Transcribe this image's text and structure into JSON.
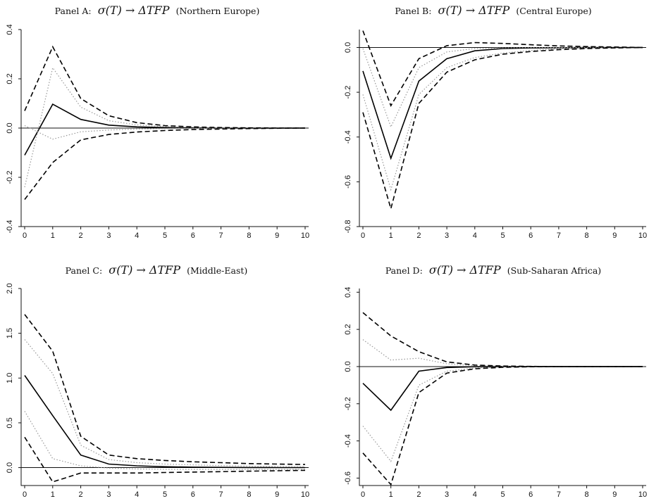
{
  "chart_data": [
    {
      "type": "line",
      "title": {
        "label": "Panel A:",
        "sym": "σ(T) → ΔTFP",
        "region": "(Northern Europe)"
      },
      "x": [
        0,
        1,
        2,
        3,
        4,
        5,
        6,
        7,
        8,
        9,
        10
      ],
      "xticks": [
        "0",
        "1",
        "2",
        "3",
        "4",
        "5",
        "6",
        "7",
        "8",
        "9",
        "10"
      ],
      "xlim": [
        0,
        10
      ],
      "ylim": [
        -0.4,
        0.4
      ],
      "yticks": [
        -0.4,
        -0.2,
        0.0,
        0.2,
        0.4
      ],
      "ytick_labels": [
        "-0.4",
        "-0.2",
        "0.0",
        "0.2",
        "0.4"
      ],
      "series": [
        {
          "style": "solid",
          "values": [
            -0.11,
            0.097,
            0.035,
            0.012,
            0.005,
            0.002,
            0.001,
            0.0,
            0.0,
            0.0,
            0.0
          ]
        },
        {
          "style": "dotted",
          "values": [
            -0.24,
            0.245,
            0.085,
            0.03,
            0.013,
            0.006,
            0.003,
            0.001,
            0.0,
            0.0,
            0.0
          ]
        },
        {
          "style": "dotted",
          "values": [
            0.01,
            -0.045,
            -0.015,
            -0.008,
            -0.004,
            -0.002,
            -0.001,
            0.0,
            0.0,
            0.0,
            0.0
          ]
        },
        {
          "style": "dashed",
          "values": [
            0.07,
            0.33,
            0.12,
            0.05,
            0.022,
            0.01,
            0.005,
            0.002,
            0.001,
            0.0,
            0.0
          ]
        },
        {
          "style": "dashed",
          "values": [
            -0.29,
            -0.14,
            -0.048,
            -0.026,
            -0.016,
            -0.01,
            -0.006,
            -0.004,
            -0.002,
            -0.001,
            0.0
          ]
        }
      ]
    },
    {
      "type": "line",
      "title": {
        "label": "Panel B:",
        "sym": "σ(T) → ΔTFP",
        "region": "(Central Europe)"
      },
      "x": [
        0,
        1,
        2,
        3,
        4,
        5,
        6,
        7,
        8,
        9,
        10
      ],
      "xticks": [
        "0",
        "1",
        "2",
        "3",
        "4",
        "5",
        "6",
        "7",
        "8",
        "9",
        "10"
      ],
      "xlim": [
        0,
        10
      ],
      "ylim": [
        -0.8,
        0.08
      ],
      "yticks": [
        -0.8,
        -0.6,
        -0.4,
        -0.2,
        0.0
      ],
      "ytick_labels": [
        "-0.8",
        "-0.6",
        "-0.4",
        "-0.2",
        "0.0"
      ],
      "series": [
        {
          "style": "solid",
          "values": [
            -0.105,
            -0.495,
            -0.15,
            -0.05,
            -0.015,
            -0.005,
            -0.002,
            -0.001,
            0.0,
            0.0,
            0.0
          ]
        },
        {
          "style": "dotted",
          "values": [
            -0.21,
            -0.635,
            -0.21,
            -0.09,
            -0.045,
            -0.025,
            -0.013,
            -0.006,
            -0.003,
            -0.001,
            0.0
          ]
        },
        {
          "style": "dotted",
          "values": [
            -0.005,
            -0.355,
            -0.09,
            -0.02,
            -0.005,
            -0.002,
            0.0,
            0.0,
            0.0,
            0.0,
            0.0
          ]
        },
        {
          "style": "dashed",
          "values": [
            0.075,
            -0.26,
            -0.05,
            0.008,
            0.022,
            0.018,
            0.012,
            0.007,
            0.004,
            0.002,
            0.0
          ]
        },
        {
          "style": "dashed",
          "values": [
            -0.29,
            -0.72,
            -0.25,
            -0.11,
            -0.055,
            -0.03,
            -0.018,
            -0.01,
            -0.005,
            -0.002,
            0.0
          ]
        }
      ]
    },
    {
      "type": "line",
      "title": {
        "label": "Panel C:",
        "sym": "σ(T) → ΔTFP",
        "region": "(Middle-East)"
      },
      "x": [
        0,
        1,
        2,
        3,
        4,
        5,
        6,
        7,
        8,
        9,
        10
      ],
      "xticks": [
        "0",
        "1",
        "2",
        "3",
        "4",
        "5",
        "6",
        "7",
        "8",
        "9",
        "10"
      ],
      "xlim": [
        0,
        10
      ],
      "ylim": [
        -0.2,
        2.0
      ],
      "yticks": [
        0.0,
        0.5,
        1.0,
        1.5,
        2.0
      ],
      "ytick_labels": [
        "0.0",
        "0.5",
        "1.0",
        "1.5",
        "2.0"
      ],
      "series": [
        {
          "style": "solid",
          "values": [
            1.03,
            0.58,
            0.14,
            0.04,
            0.02,
            0.01,
            0.005,
            0.003,
            0.001,
            0.0,
            0.0
          ]
        },
        {
          "style": "dotted",
          "values": [
            1.43,
            1.05,
            0.25,
            0.09,
            0.055,
            0.04,
            0.03,
            0.022,
            0.016,
            0.012,
            0.01
          ]
        },
        {
          "style": "dotted",
          "values": [
            0.63,
            0.1,
            0.02,
            -0.005,
            -0.015,
            -0.02,
            -0.02,
            -0.02,
            -0.02,
            -0.02,
            -0.02
          ]
        },
        {
          "style": "dashed",
          "values": [
            1.71,
            1.3,
            0.35,
            0.14,
            0.1,
            0.08,
            0.065,
            0.055,
            0.045,
            0.04,
            0.035
          ]
        },
        {
          "style": "dashed",
          "values": [
            0.34,
            -0.16,
            -0.06,
            -0.06,
            -0.06,
            -0.055,
            -0.05,
            -0.045,
            -0.04,
            -0.035,
            -0.03
          ]
        }
      ]
    },
    {
      "type": "line",
      "title": {
        "label": "Panel D:",
        "sym": "σ(T) → ΔTFP",
        "region": "(Sub-Saharan Africa)"
      },
      "x": [
        0,
        1,
        2,
        3,
        4,
        5,
        6,
        7,
        8,
        9,
        10
      ],
      "xticks": [
        "0",
        "1",
        "2",
        "3",
        "4",
        "5",
        "6",
        "7",
        "8",
        "9",
        "10"
      ],
      "xlim": [
        0,
        10
      ],
      "ylim": [
        -0.64,
        0.42
      ],
      "yticks": [
        -0.6,
        -0.4,
        -0.2,
        0.0,
        0.2,
        0.4
      ],
      "ytick_labels": [
        "-0.6",
        "-0.4",
        "-0.2",
        "0.0",
        "0.2",
        "0.4"
      ],
      "series": [
        {
          "style": "solid",
          "values": [
            -0.09,
            -0.235,
            -0.025,
            -0.005,
            -0.001,
            0.0,
            0.0,
            0.0,
            0.0,
            0.0,
            0.0
          ]
        },
        {
          "style": "dotted",
          "values": [
            0.145,
            0.035,
            0.045,
            0.015,
            0.005,
            0.002,
            0.0,
            0.0,
            0.0,
            0.0,
            0.0
          ]
        },
        {
          "style": "dotted",
          "values": [
            -0.32,
            -0.51,
            -0.1,
            -0.025,
            -0.008,
            -0.003,
            -0.001,
            0.0,
            0.0,
            0.0,
            0.0
          ]
        },
        {
          "style": "dashed",
          "values": [
            0.29,
            0.165,
            0.08,
            0.025,
            0.008,
            0.003,
            0.001,
            0.0,
            0.0,
            0.0,
            0.0
          ]
        },
        {
          "style": "dashed",
          "values": [
            -0.465,
            -0.635,
            -0.14,
            -0.035,
            -0.012,
            -0.004,
            -0.001,
            0.0,
            0.0,
            0.0,
            0.0
          ]
        }
      ]
    }
  ]
}
